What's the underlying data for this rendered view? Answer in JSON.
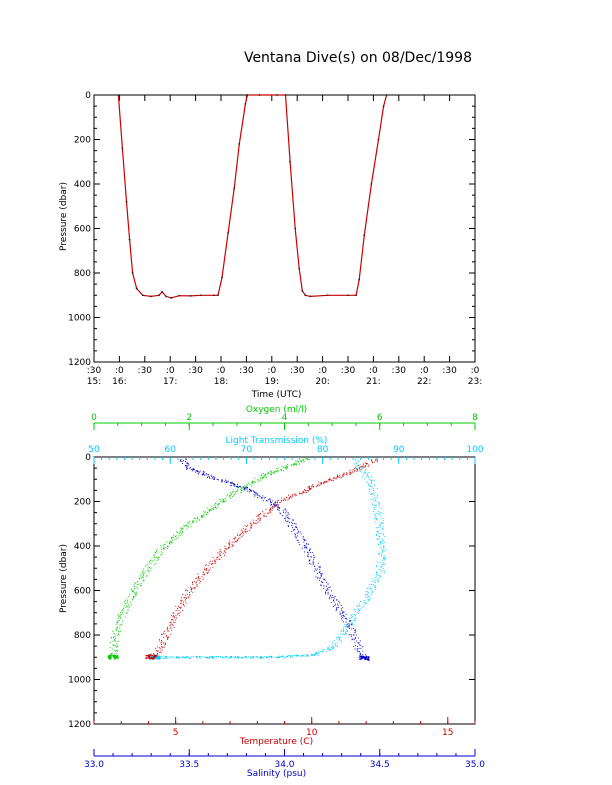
{
  "title": "Ventana Dive(s) on 08/Dec/1998",
  "chart_data": [
    {
      "type": "line",
      "name": "dive-profile",
      "xlabel": "Time (UTC)",
      "ylabel": "Pressure (dbar)",
      "xlim": [
        15.5,
        23.0
      ],
      "ylim": [
        1200,
        0
      ],
      "y_ticks": [
        "0",
        "200",
        "400",
        "600",
        "800",
        "1000",
        "1200"
      ],
      "y_tick_values": [
        0,
        200,
        400,
        600,
        800,
        1000,
        1200
      ],
      "x_ticks": [
        {
          "t": 15.5,
          "top": ":30",
          "bottom": "15:"
        },
        {
          "t": 16.0,
          "top": ":0",
          "bottom": "16:"
        },
        {
          "t": 16.5,
          "top": ":30",
          "bottom": ""
        },
        {
          "t": 17.0,
          "top": ":0",
          "bottom": "17:"
        },
        {
          "t": 17.5,
          "top": ":30",
          "bottom": ""
        },
        {
          "t": 18.0,
          "top": ":0",
          "bottom": "18:"
        },
        {
          "t": 18.5,
          "top": ":30",
          "bottom": ""
        },
        {
          "t": 19.0,
          "top": ":0",
          "bottom": "19:"
        },
        {
          "t": 19.5,
          "top": ":30",
          "bottom": ""
        },
        {
          "t": 20.0,
          "top": ":0",
          "bottom": "20:"
        },
        {
          "t": 20.5,
          "top": ":30",
          "bottom": ""
        },
        {
          "t": 21.0,
          "top": ":0",
          "bottom": "21:"
        },
        {
          "t": 21.5,
          "top": ":30",
          "bottom": ""
        },
        {
          "t": 22.0,
          "top": ":0",
          "bottom": "22:"
        },
        {
          "t": 22.5,
          "top": ":30",
          "bottom": ""
        },
        {
          "t": 23.0,
          "top": ":0",
          "bottom": "23:"
        }
      ],
      "series": [
        {
          "color": "#cc0000",
          "points": [
            [
              15.98,
              0
            ],
            [
              16.06,
              240
            ],
            [
              16.14,
              480
            ],
            [
              16.2,
              650
            ],
            [
              16.26,
              800
            ],
            [
              16.34,
              870
            ],
            [
              16.46,
              900
            ],
            [
              16.62,
              905
            ],
            [
              16.78,
              900
            ],
            [
              16.84,
              885
            ],
            [
              16.92,
              905
            ],
            [
              17.02,
              912
            ],
            [
              17.18,
              902
            ],
            [
              17.4,
              903
            ],
            [
              17.6,
              900
            ],
            [
              17.86,
              900
            ],
            [
              17.94,
              900
            ],
            [
              18.02,
              820
            ],
            [
              18.14,
              620
            ],
            [
              18.26,
              420
            ],
            [
              18.36,
              220
            ],
            [
              18.48,
              40
            ],
            [
              18.52,
              0
            ],
            [
              18.76,
              0
            ],
            [
              19.1,
              0
            ],
            [
              19.27,
              0
            ],
            [
              19.36,
              300
            ],
            [
              19.46,
              600
            ],
            [
              19.54,
              780
            ],
            [
              19.6,
              880
            ],
            [
              19.66,
              900
            ],
            [
              19.76,
              905
            ],
            [
              20.1,
              900
            ],
            [
              20.5,
              900
            ],
            [
              20.66,
              900
            ],
            [
              20.72,
              830
            ],
            [
              20.82,
              630
            ],
            [
              20.96,
              400
            ],
            [
              21.1,
              200
            ],
            [
              21.2,
              50
            ],
            [
              21.26,
              0
            ]
          ]
        }
      ]
    },
    {
      "type": "scatter",
      "name": "profiles",
      "ylabel": "Pressure (dbar)",
      "ylim": [
        1200,
        0
      ],
      "y_ticks": [
        "0",
        "200",
        "400",
        "600",
        "800",
        "1000",
        "1200"
      ],
      "y_tick_values": [
        0,
        200,
        400,
        600,
        800,
        1000,
        1200
      ],
      "axes": [
        {
          "key": "oxygen",
          "label": "Oxygen (ml/l)",
          "color": "#00cc00",
          "position": "top",
          "lim": [
            0,
            8
          ],
          "ticks": [
            "0",
            "2",
            "4",
            "6",
            "8"
          ],
          "tick_values": [
            0,
            2,
            4,
            6,
            8
          ]
        },
        {
          "key": "transmission",
          "label": "Light Transmission (%)",
          "color": "#00ccff",
          "position": "top",
          "lim": [
            50,
            100
          ],
          "ticks": [
            "50",
            "60",
            "70",
            "80",
            "90",
            "100"
          ],
          "tick_values": [
            50,
            60,
            70,
            80,
            90,
            100
          ]
        },
        {
          "key": "temperature",
          "label": "Temperature (C)",
          "color": "#cc0000",
          "position": "bottom",
          "lim": [
            2.0,
            16.0
          ],
          "ticks": [
            "5",
            "10",
            "15"
          ],
          "tick_values": [
            5,
            10,
            15
          ]
        },
        {
          "key": "salinity",
          "label": "Salinity (psu)",
          "color": "#0000cc",
          "position": "bottom",
          "lim": [
            33.0,
            35.0
          ],
          "ticks": [
            "33.0",
            "33.5",
            "34.0",
            "34.5",
            "35.0"
          ],
          "tick_values": [
            33.0,
            33.5,
            34.0,
            34.5,
            35.0
          ]
        }
      ],
      "series": [
        {
          "axis": "oxygen",
          "color": "#00cc00",
          "points": [
            [
              4.5,
              10
            ],
            [
              3.6,
              80
            ],
            [
              2.8,
              180
            ],
            [
              2.0,
              300
            ],
            [
              1.4,
              420
            ],
            [
              0.95,
              560
            ],
            [
              0.6,
              700
            ],
            [
              0.45,
              800
            ],
            [
              0.4,
              870
            ],
            [
              0.4,
              900
            ]
          ]
        },
        {
          "axis": "transmission",
          "color": "#00ccff",
          "points": [
            [
              84.5,
              10
            ],
            [
              85.0,
              50
            ],
            [
              86.5,
              120
            ],
            [
              87.0,
              200
            ],
            [
              87.5,
              300
            ],
            [
              87.8,
              420
            ],
            [
              87.5,
              520
            ],
            [
              86.0,
              620
            ],
            [
              84.5,
              700
            ],
            [
              83.0,
              780
            ],
            [
              81.5,
              850
            ],
            [
              79.0,
              890
            ],
            [
              74.0,
              900
            ],
            [
              65.0,
              900
            ],
            [
              58.0,
              900
            ]
          ]
        },
        {
          "axis": "temperature",
          "color": "#cc0000",
          "points": [
            [
              12.4,
              10
            ],
            [
              11.6,
              60
            ],
            [
              10.3,
              120
            ],
            [
              9.0,
              190
            ],
            [
              8.0,
              280
            ],
            [
              7.1,
              380
            ],
            [
              6.3,
              480
            ],
            [
              5.7,
              570
            ],
            [
              5.2,
              660
            ],
            [
              4.8,
              760
            ],
            [
              4.5,
              840
            ],
            [
              4.3,
              880
            ],
            [
              4.1,
              900
            ]
          ]
        },
        {
          "axis": "salinity",
          "color": "#0000cc",
          "points": [
            [
              33.46,
              10
            ],
            [
              33.5,
              50
            ],
            [
              33.62,
              90
            ],
            [
              33.82,
              150
            ],
            [
              33.98,
              230
            ],
            [
              34.06,
              330
            ],
            [
              34.14,
              450
            ],
            [
              34.2,
              560
            ],
            [
              34.27,
              660
            ],
            [
              34.34,
              760
            ],
            [
              34.38,
              840
            ],
            [
              34.41,
              890
            ],
            [
              34.42,
              905
            ]
          ]
        }
      ]
    }
  ]
}
